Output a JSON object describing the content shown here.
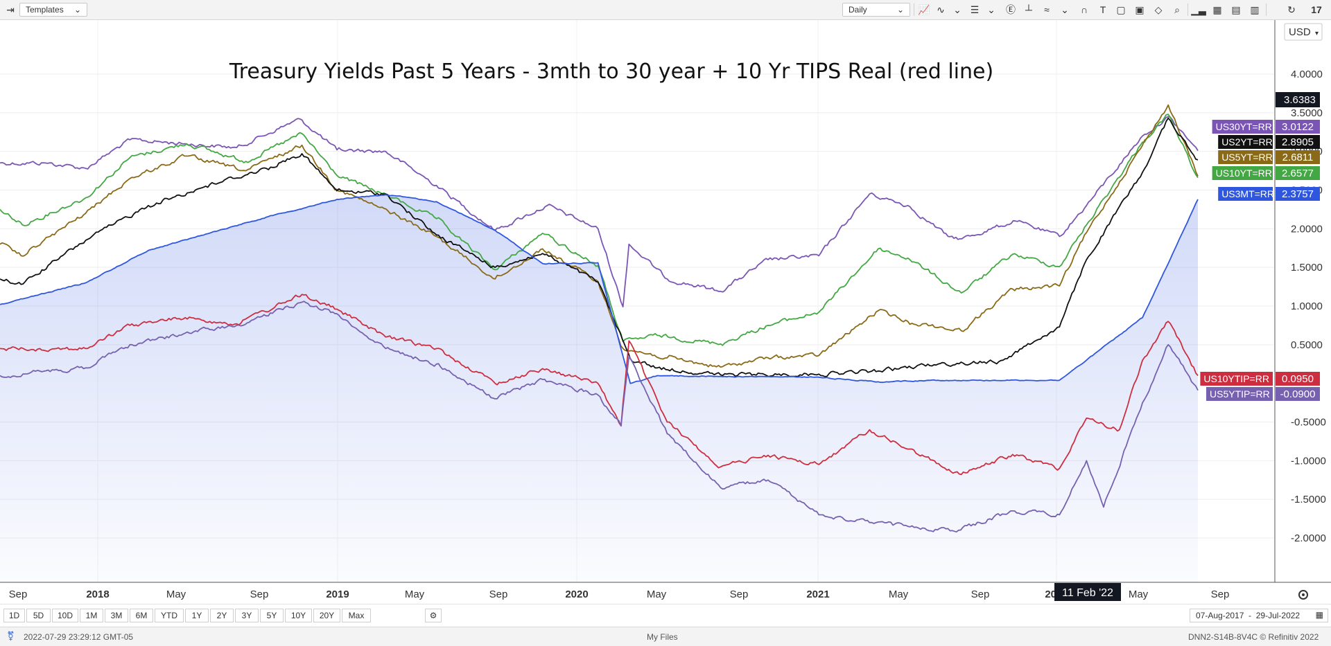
{
  "toolbar": {
    "templates_label": "Templates",
    "interval_label": "Daily",
    "currency_label": "USD"
  },
  "chart_data": {
    "type": "line",
    "title": "Treasury Yields Past 5 Years - 3mth to 30 year + 10 Yr TIPS Real (red line)",
    "x_range": [
      "2017-08-07",
      "2022-07-29"
    ],
    "ylim": [
      -2.5,
      4.5
    ],
    "y_ticks": [
      "4.0000",
      "3.5000",
      "3.0000",
      "2.5000",
      "2.0000",
      "1.5000",
      "1.0000",
      "0.5000",
      "-0.5000",
      "-1.0000",
      "-1.5000",
      "-2.0000"
    ],
    "x_tick_labels": [
      "Sep",
      "2018",
      "May",
      "Sep",
      "2019",
      "May",
      "Sep",
      "2020",
      "May",
      "Sep",
      "2021",
      "May",
      "Sep",
      "2022",
      "May",
      "Sep"
    ],
    "crosshair_date": "11 Feb '22",
    "crosshair_price": "3.6383",
    "grid": true,
    "legend": "right-axis tags",
    "series": [
      {
        "name": "US30YT=RR",
        "last": "3.0122",
        "color": "#7b55b5",
        "points": [
          [
            "2017-08-07",
            2.85
          ],
          [
            "2017-10-15",
            2.85
          ],
          [
            "2017-12-15",
            2.78
          ],
          [
            "2018-02-20",
            3.15
          ],
          [
            "2018-05-15",
            3.1
          ],
          [
            "2018-08-01",
            3.05
          ],
          [
            "2018-11-05",
            3.42
          ],
          [
            "2018-12-31",
            3.02
          ],
          [
            "2019-03-15",
            3.0
          ],
          [
            "2019-05-31",
            2.56
          ],
          [
            "2019-08-28",
            1.98
          ],
          [
            "2019-11-15",
            2.3
          ],
          [
            "2020-01-31",
            2.0
          ],
          [
            "2020-03-09",
            0.99
          ],
          [
            "2020-03-18",
            1.8
          ],
          [
            "2020-05-15",
            1.35
          ],
          [
            "2020-08-04",
            1.19
          ],
          [
            "2020-10-15",
            1.6
          ],
          [
            "2020-12-31",
            1.65
          ],
          [
            "2021-03-18",
            2.45
          ],
          [
            "2021-05-15",
            2.3
          ],
          [
            "2021-07-15",
            1.9
          ],
          [
            "2021-08-05",
            1.87
          ],
          [
            "2021-10-25",
            2.1
          ],
          [
            "2021-12-31",
            1.9
          ],
          [
            "2022-02-10",
            2.3
          ],
          [
            "2022-05-06",
            3.2
          ],
          [
            "2022-06-14",
            3.45
          ],
          [
            "2022-07-29",
            3.01
          ]
        ]
      },
      {
        "name": "US10YT=RR",
        "last": "2.6577",
        "color": "#43a843",
        "points": [
          [
            "2017-08-07",
            2.25
          ],
          [
            "2017-09-10",
            2.05
          ],
          [
            "2017-12-15",
            2.4
          ],
          [
            "2018-02-20",
            2.92
          ],
          [
            "2018-05-17",
            3.1
          ],
          [
            "2018-08-15",
            2.87
          ],
          [
            "2018-11-08",
            3.23
          ],
          [
            "2018-12-31",
            2.69
          ],
          [
            "2019-03-25",
            2.4
          ],
          [
            "2019-05-31",
            2.13
          ],
          [
            "2019-08-28",
            1.47
          ],
          [
            "2019-11-08",
            1.94
          ],
          [
            "2020-01-31",
            1.52
          ],
          [
            "2020-03-09",
            0.54
          ],
          [
            "2020-04-30",
            0.62
          ],
          [
            "2020-08-04",
            0.51
          ],
          [
            "2020-10-15",
            0.75
          ],
          [
            "2020-12-31",
            0.92
          ],
          [
            "2021-03-31",
            1.74
          ],
          [
            "2021-05-15",
            1.62
          ],
          [
            "2021-08-04",
            1.17
          ],
          [
            "2021-10-21",
            1.67
          ],
          [
            "2021-12-31",
            1.51
          ],
          [
            "2022-02-10",
            2.05
          ],
          [
            "2022-05-06",
            3.12
          ],
          [
            "2022-06-14",
            3.48
          ],
          [
            "2022-07-29",
            2.66
          ]
        ]
      },
      {
        "name": "US5YT=RR",
        "last": "2.6811",
        "color": "#8a6a16",
        "points": [
          [
            "2017-08-07",
            1.8
          ],
          [
            "2017-09-08",
            1.65
          ],
          [
            "2017-12-15",
            2.2
          ],
          [
            "2018-02-20",
            2.65
          ],
          [
            "2018-05-17",
            2.94
          ],
          [
            "2018-08-15",
            2.75
          ],
          [
            "2018-11-08",
            3.08
          ],
          [
            "2018-12-31",
            2.51
          ],
          [
            "2019-03-25",
            2.2
          ],
          [
            "2019-05-31",
            1.9
          ],
          [
            "2019-08-28",
            1.35
          ],
          [
            "2019-11-08",
            1.74
          ],
          [
            "2020-01-31",
            1.32
          ],
          [
            "2020-03-09",
            0.45
          ],
          [
            "2020-05-15",
            0.33
          ],
          [
            "2020-08-04",
            0.21
          ],
          [
            "2020-10-15",
            0.33
          ],
          [
            "2020-12-31",
            0.36
          ],
          [
            "2021-03-31",
            0.94
          ],
          [
            "2021-05-15",
            0.8
          ],
          [
            "2021-08-04",
            0.68
          ],
          [
            "2021-10-21",
            1.22
          ],
          [
            "2021-12-31",
            1.26
          ],
          [
            "2022-02-10",
            1.95
          ],
          [
            "2022-05-06",
            3.08
          ],
          [
            "2022-06-14",
            3.6
          ],
          [
            "2022-07-29",
            2.68
          ]
        ]
      },
      {
        "name": "US2YT=RR",
        "last": "2.8905",
        "color": "#111111",
        "points": [
          [
            "2017-08-07",
            1.35
          ],
          [
            "2017-09-08",
            1.28
          ],
          [
            "2017-12-15",
            1.85
          ],
          [
            "2018-03-20",
            2.3
          ],
          [
            "2018-06-15",
            2.55
          ],
          [
            "2018-09-15",
            2.78
          ],
          [
            "2018-11-08",
            2.97
          ],
          [
            "2018-12-31",
            2.49
          ],
          [
            "2019-03-15",
            2.45
          ],
          [
            "2019-05-31",
            1.92
          ],
          [
            "2019-08-28",
            1.5
          ],
          [
            "2019-11-08",
            1.68
          ],
          [
            "2020-01-31",
            1.31
          ],
          [
            "2020-03-20",
            0.32
          ],
          [
            "2020-04-30",
            0.2
          ],
          [
            "2020-08-04",
            0.11
          ],
          [
            "2020-12-31",
            0.12
          ],
          [
            "2021-03-31",
            0.16
          ],
          [
            "2021-06-30",
            0.25
          ],
          [
            "2021-09-30",
            0.28
          ],
          [
            "2021-12-31",
            0.73
          ],
          [
            "2022-02-10",
            1.6
          ],
          [
            "2022-05-06",
            2.73
          ],
          [
            "2022-06-14",
            3.43
          ],
          [
            "2022-07-29",
            2.89
          ]
        ]
      },
      {
        "name": "US3MT=RR",
        "last": "2.3757",
        "color": "#2f56de",
        "fill": true,
        "points": [
          [
            "2017-08-07",
            1.02
          ],
          [
            "2017-12-15",
            1.3
          ],
          [
            "2018-03-20",
            1.72
          ],
          [
            "2018-06-15",
            1.93
          ],
          [
            "2018-09-15",
            2.15
          ],
          [
            "2018-12-31",
            2.38
          ],
          [
            "2019-03-15",
            2.44
          ],
          [
            "2019-05-31",
            2.35
          ],
          [
            "2019-08-28",
            1.98
          ],
          [
            "2019-11-08",
            1.55
          ],
          [
            "2020-01-31",
            1.56
          ],
          [
            "2020-03-20",
            0.0
          ],
          [
            "2020-04-30",
            0.1
          ],
          [
            "2020-08-04",
            0.09
          ],
          [
            "2020-12-31",
            0.08
          ],
          [
            "2021-03-31",
            0.02
          ],
          [
            "2021-06-30",
            0.04
          ],
          [
            "2021-12-31",
            0.04
          ],
          [
            "2022-02-10",
            0.3
          ],
          [
            "2022-05-06",
            0.85
          ],
          [
            "2022-06-14",
            1.55
          ],
          [
            "2022-07-29",
            2.38
          ]
        ]
      },
      {
        "name": "US10YTIP=RR",
        "last": "0.0950",
        "color": "#cc2e40",
        "points": [
          [
            "2017-08-07",
            0.45
          ],
          [
            "2017-12-15",
            0.45
          ],
          [
            "2018-02-20",
            0.75
          ],
          [
            "2018-05-15",
            0.85
          ],
          [
            "2018-08-01",
            0.77
          ],
          [
            "2018-11-08",
            1.15
          ],
          [
            "2018-12-31",
            0.96
          ],
          [
            "2019-03-15",
            0.6
          ],
          [
            "2019-05-31",
            0.45
          ],
          [
            "2019-08-28",
            0.0
          ],
          [
            "2019-11-08",
            0.19
          ],
          [
            "2020-01-31",
            0.0
          ],
          [
            "2020-03-06",
            -0.55
          ],
          [
            "2020-03-18",
            0.55
          ],
          [
            "2020-05-15",
            -0.5
          ],
          [
            "2020-08-04",
            -1.08
          ],
          [
            "2020-10-15",
            -0.93
          ],
          [
            "2020-12-31",
            -1.05
          ],
          [
            "2021-03-18",
            -0.6
          ],
          [
            "2021-05-15",
            -0.85
          ],
          [
            "2021-08-04",
            -1.18
          ],
          [
            "2021-10-21",
            -0.92
          ],
          [
            "2021-12-31",
            -1.1
          ],
          [
            "2022-02-10",
            -0.45
          ],
          [
            "2022-04-01",
            -0.6
          ],
          [
            "2022-05-06",
            0.3
          ],
          [
            "2022-06-14",
            0.8
          ],
          [
            "2022-07-29",
            0.1
          ]
        ]
      },
      {
        "name": "US5YTIP=RR",
        "last": "-0.0900",
        "color": "#7661b0",
        "points": [
          [
            "2017-08-07",
            0.1
          ],
          [
            "2017-12-15",
            0.2
          ],
          [
            "2018-02-20",
            0.5
          ],
          [
            "2018-05-15",
            0.65
          ],
          [
            "2018-08-01",
            0.75
          ],
          [
            "2018-11-08",
            1.05
          ],
          [
            "2018-12-31",
            0.9
          ],
          [
            "2019-03-15",
            0.45
          ],
          [
            "2019-05-31",
            0.25
          ],
          [
            "2019-08-28",
            -0.2
          ],
          [
            "2019-11-08",
            0.05
          ],
          [
            "2020-01-31",
            -0.15
          ],
          [
            "2020-03-06",
            -0.55
          ],
          [
            "2020-03-18",
            0.35
          ],
          [
            "2020-05-15",
            -0.65
          ],
          [
            "2020-08-04",
            -1.35
          ],
          [
            "2020-10-15",
            -1.25
          ],
          [
            "2020-12-31",
            -1.7
          ],
          [
            "2021-03-18",
            -1.8
          ],
          [
            "2021-05-15",
            -1.85
          ],
          [
            "2021-07-31",
            -1.9
          ],
          [
            "2021-10-21",
            -1.65
          ],
          [
            "2021-12-31",
            -1.7
          ],
          [
            "2022-02-10",
            -1.0
          ],
          [
            "2022-03-08",
            -1.6
          ],
          [
            "2022-05-06",
            -0.25
          ],
          [
            "2022-06-14",
            0.5
          ],
          [
            "2022-07-29",
            -0.09
          ]
        ]
      }
    ]
  },
  "range_buttons": [
    "1D",
    "5D",
    "10D",
    "1M",
    "3M",
    "6M",
    "YTD",
    "1Y",
    "2Y",
    "3Y",
    "5Y",
    "10Y",
    "20Y",
    "Max"
  ],
  "date_range_label": "07-Aug-2017  -  29-Jul-2022",
  "status": {
    "timestamp": "2022-07-29 23:29:12 GMT-05",
    "center": "My Files",
    "right": "DNN2-S14B-8V4C  © Refinitiv 2022"
  }
}
